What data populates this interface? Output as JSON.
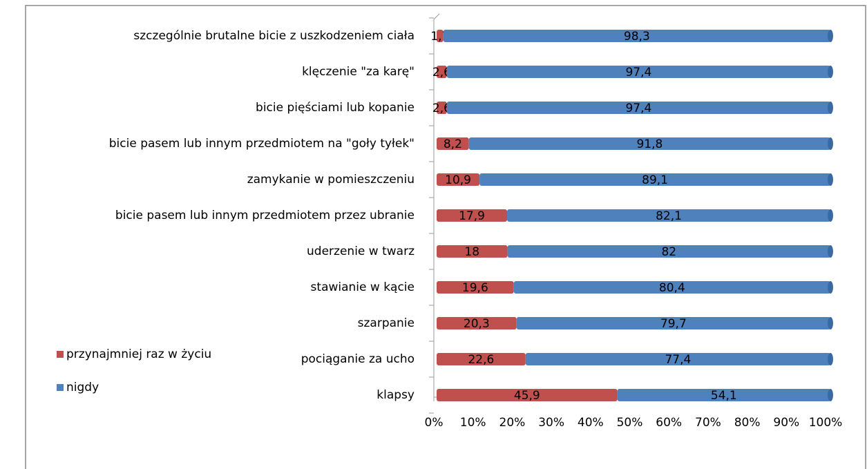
{
  "chart_data": {
    "type": "bar",
    "orientation": "horizontal",
    "stacked": true,
    "categories": [
      "szczególnie brutalne bicie z uszkodzeniem ciała",
      "klęczenie \"za karę\"",
      "bicie pięściami lub kopanie",
      "bicie pasem lub innym przedmiotem na \"goły tyłek\"",
      "zamykanie w pomieszczeniu",
      "bicie pasem lub innym przedmiotem przez ubranie",
      "uderzenie w twarz",
      "stawianie w kącie",
      "szarpanie",
      "pociąganie za ucho",
      "klapsy"
    ],
    "series": [
      {
        "name": "przynajmniej raz w życiu",
        "color": "#c0504d",
        "values": [
          1.7,
          2.6,
          2.6,
          8.2,
          10.9,
          17.9,
          18,
          19.6,
          20.3,
          22.6,
          45.9
        ],
        "value_labels": [
          "1,7",
          "2,6",
          "2,6",
          "8,2",
          "10,9",
          "17,9",
          "18",
          "19,6",
          "20,3",
          "22,6",
          "45,9"
        ]
      },
      {
        "name": "nigdy",
        "color": "#4f81bd",
        "values": [
          98.3,
          97.4,
          97.4,
          91.8,
          89.1,
          82.1,
          82,
          80.4,
          79.7,
          77.4,
          54.1
        ],
        "value_labels": [
          "98,3",
          "97,4",
          "97,4",
          "91,8",
          "89,1",
          "82,1",
          "82",
          "80,4",
          "79,7",
          "77,4",
          "54,1"
        ]
      }
    ],
    "xlim": [
      0,
      100
    ],
    "xticks": [
      {
        "value": 0,
        "label": "0%"
      },
      {
        "value": 10,
        "label": "10%"
      },
      {
        "value": 20,
        "label": "20%"
      },
      {
        "value": 30,
        "label": "30%"
      },
      {
        "value": 40,
        "label": "40%"
      },
      {
        "value": 50,
        "label": "50%"
      },
      {
        "value": 60,
        "label": "60%"
      },
      {
        "value": 70,
        "label": "70%"
      },
      {
        "value": 80,
        "label": "80%"
      },
      {
        "value": 90,
        "label": "90%"
      },
      {
        "value": 100,
        "label": "100%"
      }
    ],
    "legend": "left"
  }
}
